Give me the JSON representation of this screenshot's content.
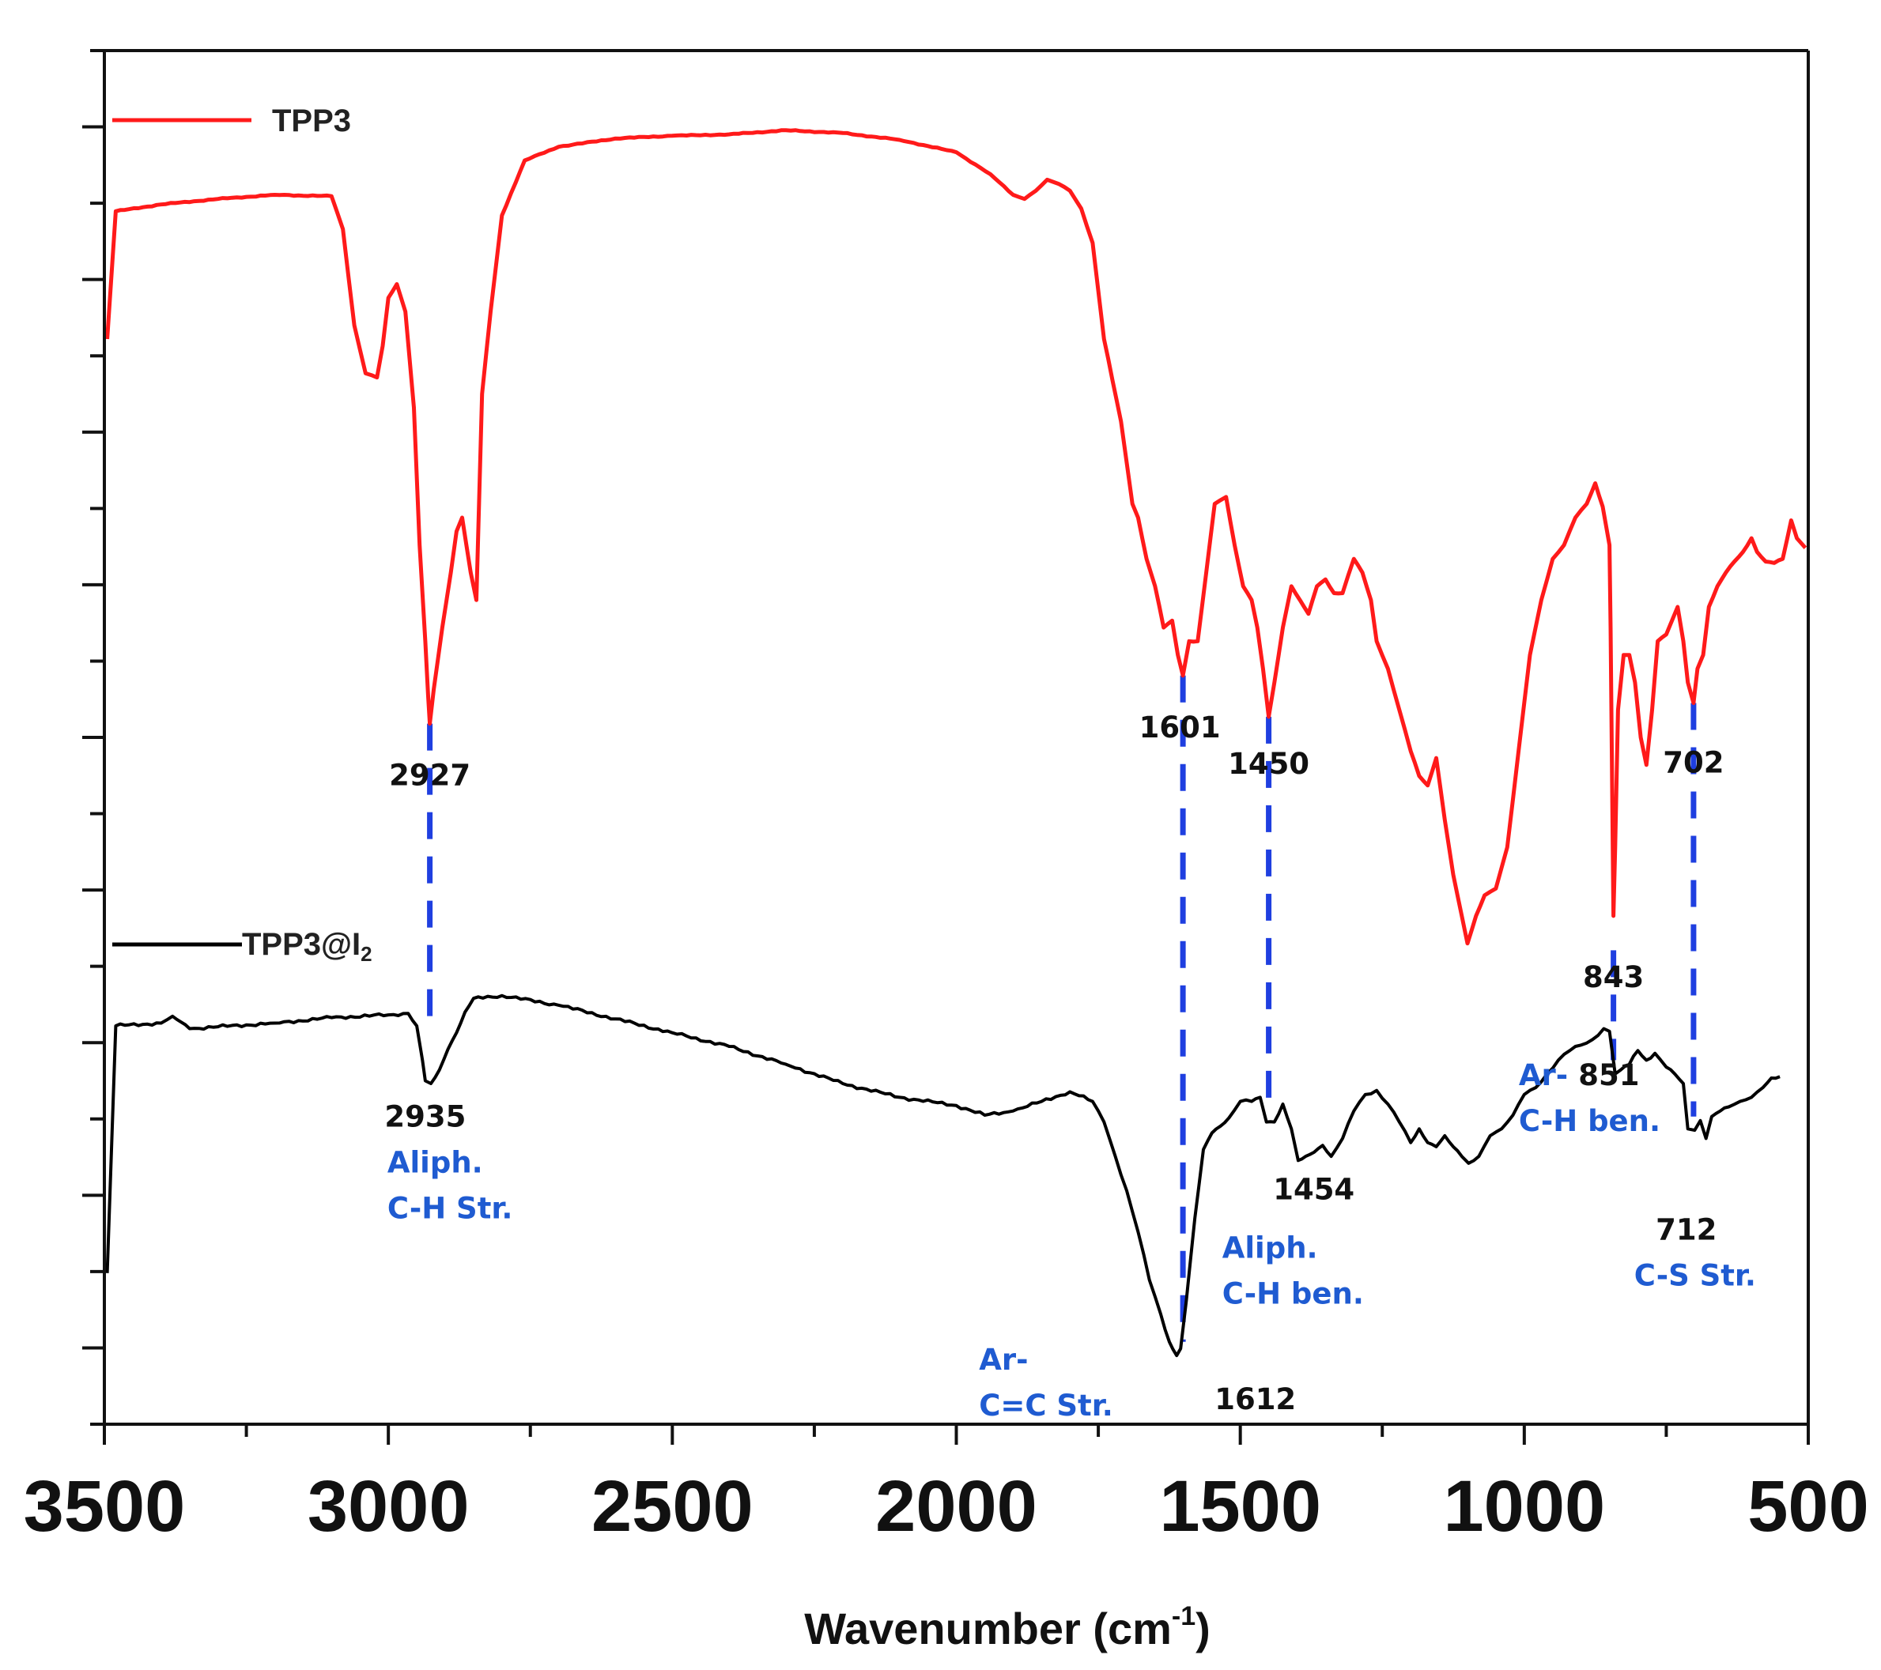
{
  "colors": {
    "tpp3": "#ff1a1a",
    "tpp3_i2": "#000000",
    "guide": "#1f3fe0",
    "assign": "#1f5bd1"
  },
  "chart_data": {
    "type": "line",
    "title": "",
    "xlabel_main": "Wavenumber (cm",
    "xlabel_sup": "-1",
    "xlabel_end": ")",
    "xlim": [
      3500,
      500
    ],
    "x_ticks": [
      3500,
      3000,
      2500,
      2000,
      1500,
      1000,
      500
    ],
    "x_tick_labels": [
      "3500",
      "3000",
      "2500",
      "2000",
      "1500",
      "1000",
      "500"
    ],
    "ylim": [
      0,
      100
    ],
    "y_ticks_count": 18,
    "grid": false,
    "legend": [
      {
        "text": "TPP3"
      },
      {
        "text_main": "TPP3@I",
        "text_sub": "2"
      }
    ],
    "series": [
      {
        "name": "TPP3",
        "color": "#ff1a1a",
        "points": [
          [
            3495,
            79
          ],
          [
            3480,
            88.3
          ],
          [
            3400,
            88.8
          ],
          [
            3300,
            89.2
          ],
          [
            3200,
            89.5
          ],
          [
            3100,
            89.4
          ],
          [
            3080,
            87
          ],
          [
            3060,
            80
          ],
          [
            3040,
            76.5
          ],
          [
            3020,
            76.2
          ],
          [
            3010,
            78.5
          ],
          [
            3000,
            82
          ],
          [
            2985,
            83
          ],
          [
            2970,
            81
          ],
          [
            2955,
            74
          ],
          [
            2945,
            64
          ],
          [
            2935,
            57
          ],
          [
            2930,
            53
          ],
          [
            2927,
            51
          ],
          [
            2920,
            53.5
          ],
          [
            2905,
            58
          ],
          [
            2890,
            62
          ],
          [
            2880,
            65
          ],
          [
            2870,
            66
          ],
          [
            2855,
            62
          ],
          [
            2845,
            60
          ],
          [
            2835,
            75
          ],
          [
            2820,
            81
          ],
          [
            2800,
            88
          ],
          [
            2760,
            92
          ],
          [
            2700,
            93
          ],
          [
            2600,
            93.6
          ],
          [
            2500,
            93.8
          ],
          [
            2400,
            93.9
          ],
          [
            2300,
            94.2
          ],
          [
            2200,
            94.0
          ],
          [
            2100,
            93.5
          ],
          [
            2000,
            92.6
          ],
          [
            1940,
            91
          ],
          [
            1900,
            89.5
          ],
          [
            1880,
            89.2
          ],
          [
            1860,
            89.8
          ],
          [
            1840,
            90.6
          ],
          [
            1820,
            90.3
          ],
          [
            1800,
            89.8
          ],
          [
            1780,
            88.5
          ],
          [
            1760,
            86
          ],
          [
            1740,
            79
          ],
          [
            1725,
            76
          ],
          [
            1710,
            73
          ],
          [
            1700,
            70
          ],
          [
            1690,
            67
          ],
          [
            1680,
            66
          ],
          [
            1665,
            63
          ],
          [
            1650,
            61
          ],
          [
            1635,
            58
          ],
          [
            1620,
            58.5
          ],
          [
            1610,
            56
          ],
          [
            1601,
            54.5
          ],
          [
            1590,
            57
          ],
          [
            1575,
            57
          ],
          [
            1560,
            62
          ],
          [
            1545,
            67
          ],
          [
            1525,
            67.5
          ],
          [
            1510,
            64
          ],
          [
            1495,
            61
          ],
          [
            1480,
            60
          ],
          [
            1470,
            58
          ],
          [
            1460,
            55
          ],
          [
            1450,
            51.5
          ],
          [
            1440,
            54
          ],
          [
            1425,
            58
          ],
          [
            1410,
            61
          ],
          [
            1395,
            60
          ],
          [
            1380,
            59
          ],
          [
            1365,
            61
          ],
          [
            1350,
            61.5
          ],
          [
            1335,
            60.5
          ],
          [
            1320,
            60.5
          ],
          [
            1300,
            63
          ],
          [
            1285,
            62
          ],
          [
            1270,
            60
          ],
          [
            1260,
            57
          ],
          [
            1240,
            55
          ],
          [
            1220,
            52
          ],
          [
            1200,
            49
          ],
          [
            1185,
            47.2
          ],
          [
            1170,
            46.5
          ],
          [
            1155,
            48.5
          ],
          [
            1140,
            44
          ],
          [
            1125,
            40
          ],
          [
            1110,
            37
          ],
          [
            1100,
            35
          ],
          [
            1085,
            37
          ],
          [
            1070,
            38.5
          ],
          [
            1050,
            39
          ],
          [
            1030,
            42
          ],
          [
            1010,
            49
          ],
          [
            990,
            56
          ],
          [
            970,
            60
          ],
          [
            950,
            63
          ],
          [
            930,
            64
          ],
          [
            910,
            66
          ],
          [
            890,
            67
          ],
          [
            875,
            68.5
          ],
          [
            862,
            66.8
          ],
          [
            850,
            64
          ],
          [
            848,
            58
          ],
          [
            845,
            45
          ],
          [
            843,
            37
          ],
          [
            840,
            42
          ],
          [
            835,
            52
          ],
          [
            825,
            56
          ],
          [
            815,
            56
          ],
          [
            805,
            54
          ],
          [
            795,
            50
          ],
          [
            785,
            48
          ],
          [
            775,
            52
          ],
          [
            765,
            57
          ],
          [
            750,
            57.5
          ],
          [
            740,
            58.5
          ],
          [
            730,
            59.5
          ],
          [
            720,
            57
          ],
          [
            712,
            54
          ],
          [
            702,
            52.5
          ],
          [
            695,
            55
          ],
          [
            685,
            56
          ],
          [
            675,
            59.5
          ],
          [
            660,
            61
          ],
          [
            645,
            62
          ],
          [
            630,
            62.8
          ],
          [
            615,
            63.5
          ],
          [
            600,
            64.5
          ],
          [
            590,
            63.5
          ],
          [
            575,
            62.8
          ],
          [
            560,
            62.7
          ],
          [
            545,
            63
          ],
          [
            530,
            65.8
          ],
          [
            520,
            64.5
          ],
          [
            505,
            63.8
          ]
        ]
      },
      {
        "name": "TPP3@I2",
        "color": "#000000",
        "points": [
          [
            3495,
            11
          ],
          [
            3480,
            29
          ],
          [
            3400,
            29.2
          ],
          [
            3380,
            29.7
          ],
          [
            3350,
            28.8
          ],
          [
            3200,
            29.2
          ],
          [
            3100,
            29.6
          ],
          [
            3000,
            29.8
          ],
          [
            2965,
            29.9
          ],
          [
            2950,
            29
          ],
          [
            2940,
            26.5
          ],
          [
            2935,
            25
          ],
          [
            2925,
            24.8
          ],
          [
            2910,
            25.8
          ],
          [
            2895,
            27.3
          ],
          [
            2880,
            28.5
          ],
          [
            2865,
            30
          ],
          [
            2850,
            31
          ],
          [
            2800,
            31.2
          ],
          [
            2700,
            30.5
          ],
          [
            2600,
            29.5
          ],
          [
            2500,
            28.5
          ],
          [
            2400,
            27.5
          ],
          [
            2300,
            26.2
          ],
          [
            2200,
            24.8
          ],
          [
            2100,
            23.8
          ],
          [
            2000,
            23.2
          ],
          [
            1950,
            22.5
          ],
          [
            1900,
            22.8
          ],
          [
            1850,
            23.5
          ],
          [
            1800,
            24.2
          ],
          [
            1760,
            23.5
          ],
          [
            1740,
            22
          ],
          [
            1720,
            19.5
          ],
          [
            1700,
            17
          ],
          [
            1680,
            14
          ],
          [
            1660,
            10.5
          ],
          [
            1640,
            8
          ],
          [
            1625,
            6
          ],
          [
            1612,
            5
          ],
          [
            1605,
            5.5
          ],
          [
            1595,
            9
          ],
          [
            1580,
            15
          ],
          [
            1565,
            20
          ],
          [
            1550,
            21.2
          ],
          [
            1520,
            22.3
          ],
          [
            1500,
            23.5
          ],
          [
            1480,
            23.5
          ],
          [
            1465,
            23.8
          ],
          [
            1454,
            22
          ],
          [
            1440,
            22
          ],
          [
            1425,
            23.3
          ],
          [
            1410,
            21.5
          ],
          [
            1398,
            19.2
          ],
          [
            1385,
            19.5
          ],
          [
            1370,
            19.8
          ],
          [
            1355,
            20.3
          ],
          [
            1340,
            19.5
          ],
          [
            1320,
            20.8
          ],
          [
            1300,
            22.8
          ],
          [
            1280,
            24
          ],
          [
            1260,
            24.3
          ],
          [
            1240,
            23.3
          ],
          [
            1220,
            22
          ],
          [
            1200,
            20.5
          ],
          [
            1185,
            21.5
          ],
          [
            1170,
            20.5
          ],
          [
            1155,
            20.2
          ],
          [
            1140,
            21
          ],
          [
            1125,
            20.2
          ],
          [
            1110,
            19.5
          ],
          [
            1098,
            19
          ],
          [
            1080,
            19.5
          ],
          [
            1060,
            21
          ],
          [
            1040,
            21.5
          ],
          [
            1020,
            22.5
          ],
          [
            1000,
            24
          ],
          [
            980,
            24.5
          ],
          [
            960,
            25.5
          ],
          [
            940,
            26.5
          ],
          [
            920,
            27.2
          ],
          [
            900,
            27.6
          ],
          [
            880,
            28
          ],
          [
            860,
            28.8
          ],
          [
            850,
            28.6
          ],
          [
            840,
            25.5
          ],
          [
            830,
            25.8
          ],
          [
            815,
            26.2
          ],
          [
            800,
            27.2
          ],
          [
            785,
            26.5
          ],
          [
            770,
            27
          ],
          [
            750,
            26
          ],
          [
            735,
            25.5
          ],
          [
            720,
            24.8
          ],
          [
            712,
            21.5
          ],
          [
            700,
            21.4
          ],
          [
            690,
            22.1
          ],
          [
            680,
            20.8
          ],
          [
            670,
            22.4
          ],
          [
            655,
            22.8
          ],
          [
            640,
            23.1
          ],
          [
            620,
            23.5
          ],
          [
            600,
            23.8
          ],
          [
            580,
            24.5
          ],
          [
            565,
            25.2
          ],
          [
            550,
            25.3
          ]
        ]
      }
    ],
    "peak_labels": [
      {
        "series": "TPP3",
        "text": "2927",
        "x": 2927,
        "y": 51,
        "assignment": ""
      },
      {
        "series": "TPP3",
        "text": "1601",
        "x": 1601,
        "y": 54.5,
        "assignment": ""
      },
      {
        "series": "TPP3",
        "text": "1450",
        "x": 1450,
        "y": 51.5,
        "assignment": ""
      },
      {
        "series": "TPP3",
        "text": "843",
        "x": 843,
        "y": 37,
        "assignment": ""
      },
      {
        "series": "TPP3",
        "text": "702",
        "x": 702,
        "y": 52.5,
        "assignment": ""
      },
      {
        "series": "TPP3@I2",
        "text": "2935",
        "x": 2935,
        "y": 25,
        "assignment": [
          "Aliph.",
          "C-H Str."
        ]
      },
      {
        "series": "TPP3@I2",
        "text": "1612",
        "x": 1612,
        "y": 5,
        "assignment": [
          "Ar-",
          "C=C Str."
        ]
      },
      {
        "series": "TPP3@I2",
        "text": "1454",
        "x": 1454,
        "y": 22,
        "assignment": [
          "Aliph.",
          "C-H ben."
        ]
      },
      {
        "series": "TPP3@I2",
        "text": "851",
        "x": 851,
        "y": 28.6,
        "assignment": [
          "Ar-",
          "C-H ben."
        ]
      },
      {
        "series": "TPP3@I2",
        "text": "712",
        "x": 712,
        "y": 21.5,
        "assignment": [
          "C-S Str."
        ]
      }
    ],
    "guide_lines": [
      {
        "x": 2927,
        "from": "TPP3",
        "to": "TPP3@I2"
      },
      {
        "x": 1601,
        "from": "TPP3",
        "to": "TPP3@I2"
      },
      {
        "x": 1450,
        "from": "TPP3",
        "to": "TPP3@I2"
      },
      {
        "x": 843,
        "from": "TPP3",
        "to": "TPP3@I2"
      },
      {
        "x": 702,
        "from": "TPP3",
        "to": "TPP3@I2"
      }
    ]
  }
}
